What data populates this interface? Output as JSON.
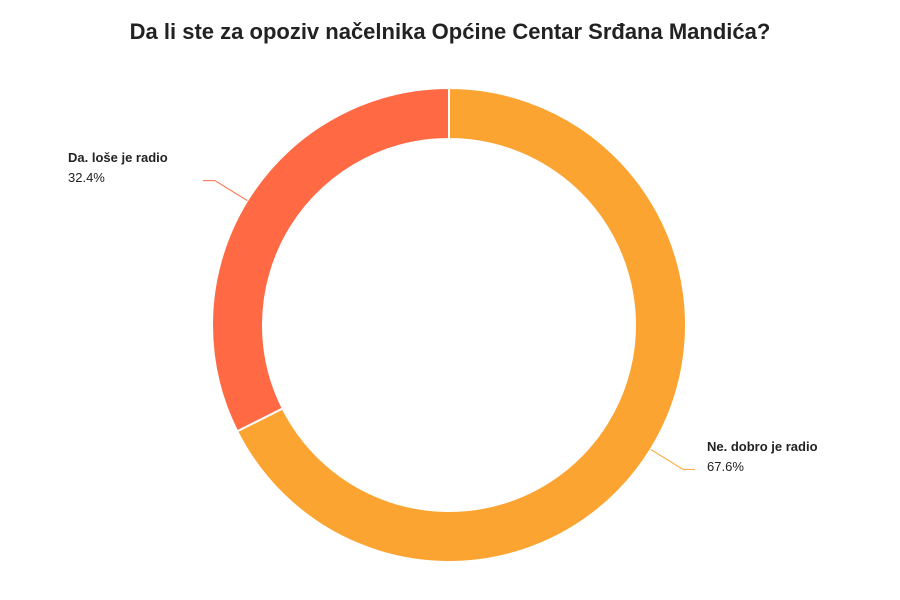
{
  "chart_data": {
    "type": "donut",
    "title": "Da li ste za opoziv načelnika Općine Centar Srđana Mandića?",
    "categories": [
      "Ne. dobro je radio",
      "Da. loše je radio"
    ],
    "values": [
      67.6,
      32.4
    ],
    "value_labels": [
      "67.6%",
      "32.4%"
    ],
    "colors": [
      "#fba432",
      "#ff6a45"
    ]
  }
}
